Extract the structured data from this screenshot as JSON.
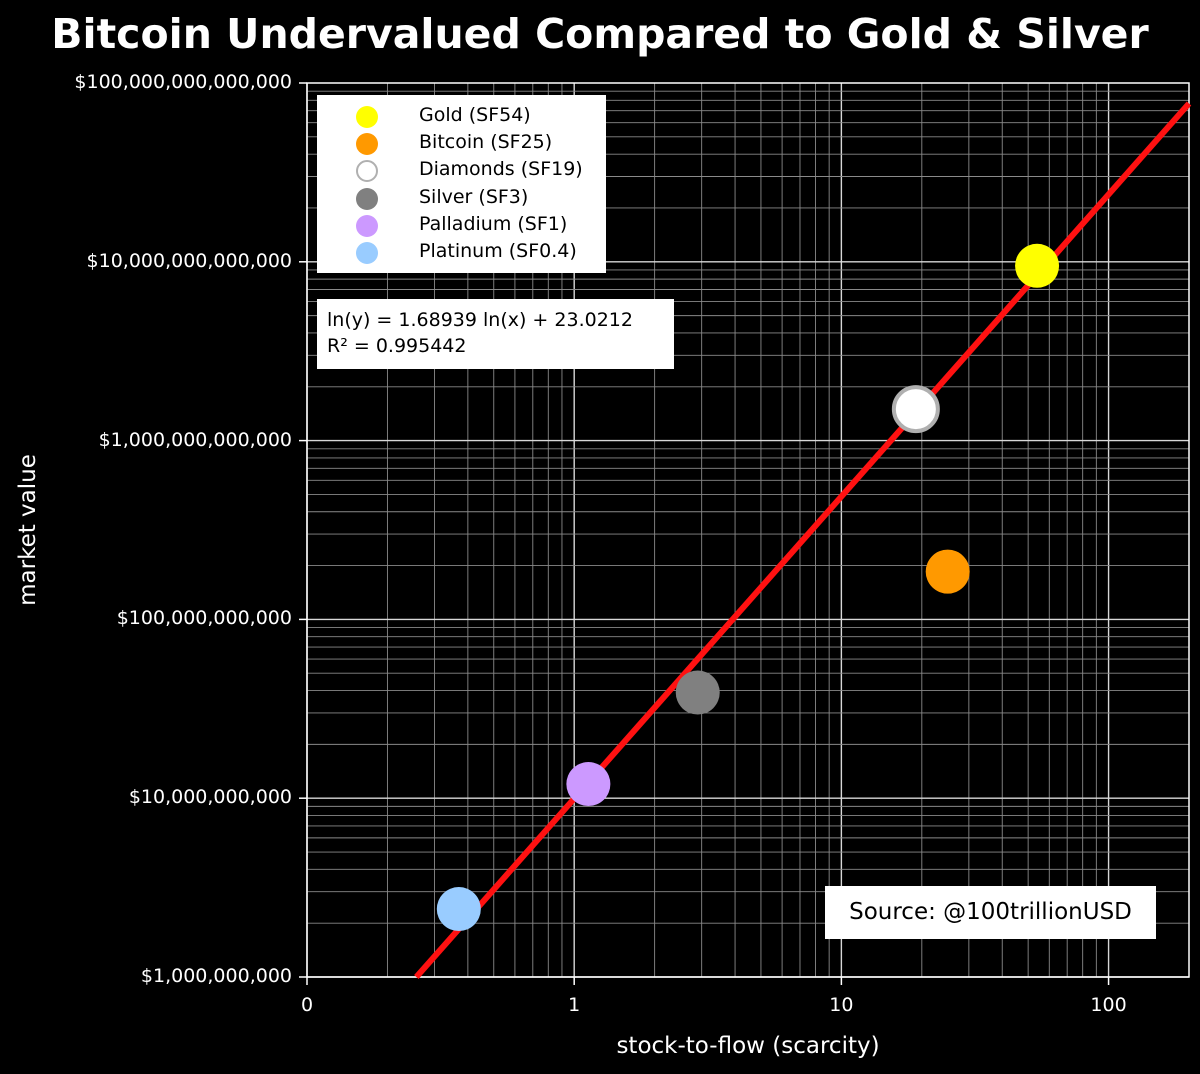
{
  "chart_data": {
    "type": "scatter",
    "title": "Bitcoin Undervalued Compared to Gold & Silver",
    "xlabel": "stock-to-flow (scarcity)",
    "ylabel": "market value",
    "xscale": "log",
    "yscale": "log",
    "xlim": [
      0.1,
      200
    ],
    "ylim": [
      1000000000,
      100000000000000
    ],
    "grid": true,
    "legend_position": "top-left",
    "x_ticks": [
      {
        "value": 0.1,
        "label": "0"
      },
      {
        "value": 1,
        "label": "1"
      },
      {
        "value": 10,
        "label": "10"
      },
      {
        "value": 100,
        "label": "100"
      }
    ],
    "y_ticks": [
      {
        "value": 1000000000,
        "label": "$1,000,000,000"
      },
      {
        "value": 10000000000,
        "label": "$10,000,000,000"
      },
      {
        "value": 100000000000,
        "label": "$100,000,000,000"
      },
      {
        "value": 1000000000000,
        "label": "$1,000,000,000,000"
      },
      {
        "value": 10000000000000,
        "label": "$10,000,000,000,000"
      },
      {
        "value": 100000000000000,
        "label": "$100,000,000,000,000"
      }
    ],
    "series": [
      {
        "name": "Gold (SF54)",
        "x": 54,
        "y": 9500000000000,
        "color": "#ffff00",
        "fill": true
      },
      {
        "name": "Bitcoin (SF25)",
        "x": 25,
        "y": 185000000000,
        "color": "#ff9900",
        "fill": true
      },
      {
        "name": "Diamonds (SF19)",
        "x": 19,
        "y": 1500000000000,
        "color": "#b0b0b0",
        "fill": false
      },
      {
        "name": "Silver (SF3)",
        "x": 2.9,
        "y": 39000000000,
        "color": "#808080",
        "fill": true
      },
      {
        "name": "Palladium (SF1)",
        "x": 1.13,
        "y": 12000000000,
        "color": "#cc99ff",
        "fill": true
      },
      {
        "name": "Platinum (SF0.4)",
        "x": 0.37,
        "y": 2400000000,
        "color": "#99ccff",
        "fill": true
      }
    ],
    "regression": {
      "equation": "ln(y) = 1.68939 ln(x) + 23.0212",
      "r2": "R² = 0.995442",
      "slope": 1.68939,
      "intercept": 23.0212,
      "color": "#ff1111"
    },
    "annotation": "Source: @100trillionUSD"
  }
}
